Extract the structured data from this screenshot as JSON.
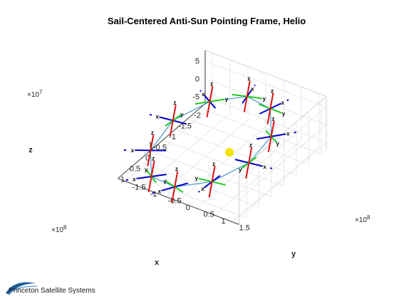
{
  "chart_data": {
    "type": "scatter",
    "title": "Sail-Centered Anti-Sun Pointing Frame, Helio",
    "xlabel": "x",
    "ylabel": "y",
    "zlabel": "z",
    "x_exponent": "×10^8",
    "y_exponent": "×10^8",
    "z_exponent": "×10^7",
    "x_ticks": [
      "-2",
      "-1.5",
      "-1",
      "-0.5",
      "0",
      "0.5",
      "1"
    ],
    "y_ticks": [
      "-1.5",
      "-1",
      "-0.5",
      "0",
      "0.5",
      "1",
      "1.5"
    ],
    "z_ticks": [
      "-5",
      "0",
      "5"
    ],
    "xlim": [
      -2.2,
      1.3
    ],
    "ylim": [
      -1.7,
      1.7
    ],
    "zlim": [
      -7,
      8
    ],
    "grid": true,
    "sun": {
      "x": 0,
      "y": 0,
      "z": 0,
      "color": "#f5e400"
    },
    "orbit": {
      "color": "#2e86c1",
      "points": [
        {
          "x": 1.45,
          "y": 0.0,
          "z": -2.0
        },
        {
          "x": 1.17,
          "y": 0.85,
          "z": 1.0
        },
        {
          "x": 0.45,
          "y": 1.38,
          "z": 4.0
        },
        {
          "x": -0.45,
          "y": 1.38,
          "z": 6.0
        },
        {
          "x": -1.17,
          "y": 0.85,
          "z": 7.5
        },
        {
          "x": -1.45,
          "y": 0.0,
          "z": 6.0
        },
        {
          "x": -1.17,
          "y": -0.85,
          "z": 3.0
        },
        {
          "x": -0.45,
          "y": -1.38,
          "z": 0.0
        },
        {
          "x": 0.45,
          "y": -1.38,
          "z": -3.0
        },
        {
          "x": 1.17,
          "y": -0.85,
          "z": -4.0
        }
      ]
    },
    "frame_axis_labels": [
      "x",
      "y",
      "z"
    ],
    "frame_colors": {
      "x": "#0000cc",
      "y": "#22cc22",
      "z": "#dd1111"
    }
  },
  "logo": {
    "text": "Princeton Satellite Systems",
    "color": "#1f5c99"
  }
}
